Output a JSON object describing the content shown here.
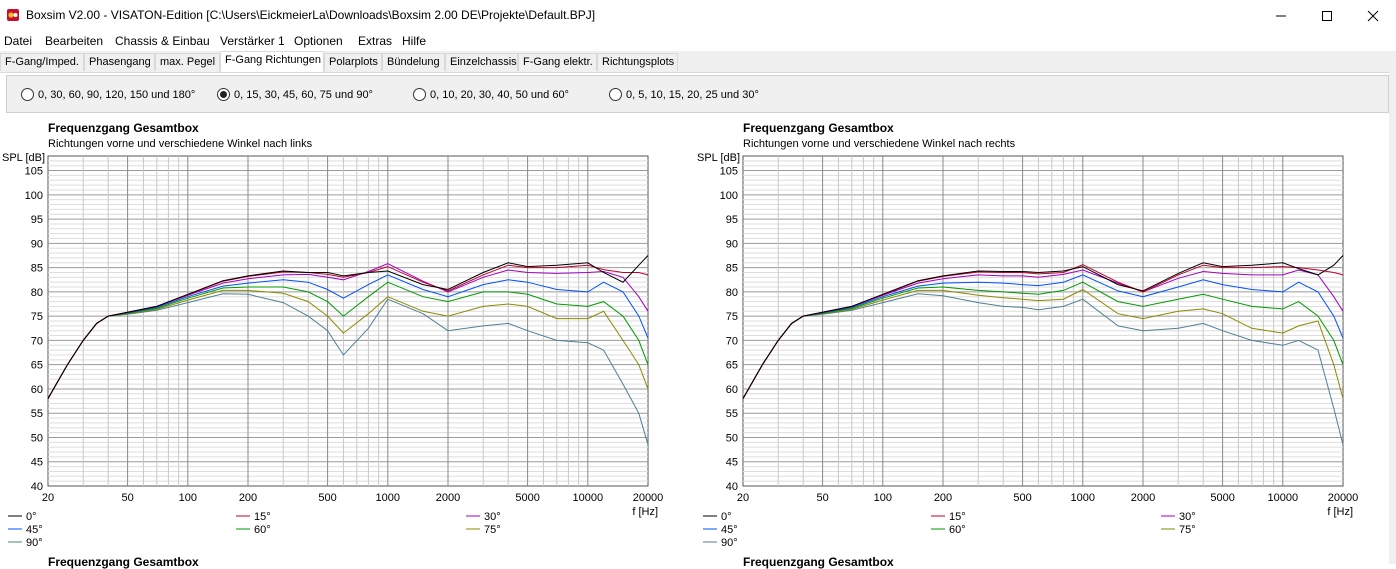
{
  "window": {
    "title": "Boxsim V2.00 - VISATON-Edition [C:\\Users\\EickmeierLa\\Downloads\\Boxsim 2.00 DE\\Projekte\\Default.BPJ]"
  },
  "menu": [
    {
      "label": "Datei"
    },
    {
      "label": "Bearbeiten"
    },
    {
      "label": "Chassis & Einbau"
    },
    {
      "label": "Verstärker 1"
    },
    {
      "label": "Optionen"
    },
    {
      "label": "Extras"
    },
    {
      "label": "Hilfe"
    }
  ],
  "tabs": [
    {
      "label": "F-Gang/Imped."
    },
    {
      "label": "Phasengang"
    },
    {
      "label": "max. Pegel"
    },
    {
      "label": "F-Gang Richtungen",
      "active": true
    },
    {
      "label": "Polarplots"
    },
    {
      "label": "Bündelung"
    },
    {
      "label": "Einzelchassis"
    },
    {
      "label": "F-Gang elektr."
    },
    {
      "label": "Richtungsplots"
    }
  ],
  "angle_options": [
    {
      "label": "0, 30, 60, 90, 120, 150 und 180°",
      "selected": false
    },
    {
      "label": "0, 15, 30, 45, 60, 75 und 90°",
      "selected": true
    },
    {
      "label": "0, 10, 20, 30, 40, 50 und 60°",
      "selected": false
    },
    {
      "label": "0, 5, 10, 15, 20, 25 und 30°",
      "selected": false
    }
  ],
  "colors": {
    "0°": "#000000",
    "15°": "#c0002a",
    "30°": "#a000c0",
    "45°": "#0050ff",
    "60°": "#009a00",
    "75°": "#8a8a00",
    "90°": "#4f7f95"
  },
  "left_chart": {
    "title": "Frequenzgang Gesamtbox",
    "subtitle": "Richtungen vorne und verschiedene Winkel nach links"
  },
  "right_chart": {
    "title": "Frequenzgang Gesamtbox",
    "subtitle": "Richtungen vorne und verschiedene Winkel nach rechts"
  },
  "bottom_titles": [
    "Frequenzgang Gesamtbox",
    "Frequenzgang Gesamtbox"
  ],
  "chart_data": [
    {
      "type": "line",
      "title": "Frequenzgang Gesamtbox",
      "subtitle": "Richtungen vorne und verschiedene Winkel nach links",
      "ylabel": "SPL [dB]",
      "xlabel": "f [Hz]",
      "xscale": "log",
      "xlim": [
        20,
        20000
      ],
      "ylim": [
        40,
        108
      ],
      "xticks": [
        20,
        50,
        100,
        200,
        500,
        1000,
        2000,
        5000,
        10000,
        20000
      ],
      "yticks": [
        40,
        45,
        50,
        55,
        60,
        65,
        70,
        75,
        80,
        85,
        90,
        95,
        100,
        105
      ],
      "grid": true,
      "legend": "bottom",
      "x": [
        20,
        25,
        30,
        35,
        40,
        50,
        70,
        100,
        150,
        200,
        300,
        400,
        500,
        600,
        800,
        1000,
        1500,
        2000,
        3000,
        4000,
        5000,
        7000,
        10000,
        12000,
        15000,
        18000,
        20000
      ],
      "series": [
        {
          "name": "0°",
          "values": [
            58,
            65,
            70,
            73.5,
            75,
            75.8,
            77,
            79.5,
            82.3,
            83.3,
            84.3,
            84,
            84,
            83.3,
            84,
            84.3,
            81.5,
            80.5,
            84,
            86,
            85.2,
            85.5,
            86,
            84,
            82,
            85.5,
            87.5
          ]
        },
        {
          "name": "15°",
          "values": [
            58,
            65,
            70,
            73.5,
            75,
            75.8,
            77,
            79.4,
            82.2,
            83.2,
            84.1,
            84,
            83.6,
            83,
            84,
            85.2,
            82,
            80.2,
            83.5,
            85.5,
            85,
            85,
            85.5,
            84.6,
            84,
            84,
            83.5
          ]
        },
        {
          "name": "30°",
          "values": [
            58,
            65,
            70,
            73.5,
            75,
            75.8,
            77,
            79.3,
            81.8,
            82.7,
            83.5,
            83.6,
            83,
            82.5,
            84.2,
            85.8,
            82.2,
            80,
            83,
            84.5,
            84,
            83.8,
            84,
            84.2,
            83,
            79,
            76
          ]
        },
        {
          "name": "45°",
          "values": [
            58,
            65,
            70,
            73.5,
            75,
            75.7,
            76.8,
            79,
            81.2,
            81.8,
            82.5,
            82,
            80.5,
            78.7,
            81.5,
            83.5,
            80.5,
            79,
            81.5,
            82.5,
            82,
            80.5,
            80,
            82,
            80,
            75,
            70.5
          ]
        },
        {
          "name": "60°",
          "values": [
            58,
            65,
            70,
            73.5,
            75,
            75.6,
            76.6,
            78.7,
            80.8,
            81,
            81,
            80,
            78,
            75,
            79,
            82,
            79,
            78,
            80,
            80,
            79.5,
            77.5,
            77,
            78,
            75,
            70,
            65
          ]
        },
        {
          "name": "75°",
          "values": [
            58,
            65,
            70,
            73.5,
            75,
            75.5,
            76.4,
            78.3,
            80.3,
            80.3,
            79.7,
            78,
            75,
            71.5,
            75.5,
            79,
            76,
            75,
            77,
            77.5,
            77,
            74.5,
            74.5,
            76,
            70,
            65,
            60
          ]
        },
        {
          "name": "90°",
          "values": [
            58,
            65,
            70,
            73.5,
            75,
            75.4,
            76.2,
            77.8,
            79.6,
            79.5,
            77.8,
            75,
            72,
            67,
            72.5,
            78.5,
            75.5,
            72,
            73,
            73.5,
            72,
            70,
            69.5,
            68,
            61,
            55,
            48.5
          ]
        }
      ]
    },
    {
      "type": "line",
      "title": "Frequenzgang Gesamtbox",
      "subtitle": "Richtungen vorne und verschiedene Winkel nach rechts",
      "ylabel": "SPL [dB]",
      "xlabel": "f [Hz]",
      "xscale": "log",
      "xlim": [
        20,
        20000
      ],
      "ylim": [
        40,
        108
      ],
      "xticks": [
        20,
        50,
        100,
        200,
        500,
        1000,
        2000,
        5000,
        10000,
        20000
      ],
      "yticks": [
        40,
        45,
        50,
        55,
        60,
        65,
        70,
        75,
        80,
        85,
        90,
        95,
        100,
        105
      ],
      "grid": true,
      "legend": "bottom",
      "x": [
        20,
        25,
        30,
        35,
        40,
        50,
        70,
        100,
        150,
        200,
        300,
        400,
        500,
        600,
        800,
        1000,
        1500,
        2000,
        3000,
        4000,
        5000,
        7000,
        10000,
        12000,
        15000,
        18000,
        20000
      ],
      "series": [
        {
          "name": "0°",
          "values": [
            58,
            65,
            70,
            73.5,
            75,
            75.8,
            77,
            79.5,
            82.3,
            83.3,
            84.3,
            84.2,
            84.2,
            84,
            84.3,
            85.2,
            81.5,
            80.2,
            83.8,
            86,
            85.2,
            85.5,
            86,
            84.8,
            83.5,
            85.5,
            87.5
          ]
        },
        {
          "name": "15°",
          "values": [
            58,
            65,
            70,
            73.5,
            75,
            75.8,
            77,
            79.4,
            82.2,
            83.2,
            84.1,
            84,
            84,
            83.7,
            84,
            85.6,
            82,
            80,
            83.5,
            85.5,
            85,
            85,
            85.2,
            85,
            84.5,
            84,
            83.5
          ]
        },
        {
          "name": "30°",
          "values": [
            58,
            65,
            70,
            73.5,
            75,
            75.8,
            77,
            79.3,
            81.8,
            82.7,
            83.5,
            83.3,
            83.3,
            83,
            83.6,
            84.5,
            81.8,
            80,
            82.8,
            84.2,
            83.8,
            83.5,
            83.5,
            84.5,
            83.5,
            79,
            76
          ]
        },
        {
          "name": "45°",
          "values": [
            58,
            65,
            70,
            73.5,
            75,
            75.7,
            76.8,
            79,
            81.2,
            81.8,
            82,
            81.8,
            81.5,
            81.3,
            82,
            83.5,
            80.2,
            79,
            81,
            82.5,
            81.5,
            80.5,
            80,
            82,
            80,
            75,
            70.5
          ]
        },
        {
          "name": "60°",
          "values": [
            58,
            65,
            70,
            73.5,
            75,
            75.6,
            76.6,
            78.7,
            80.8,
            81,
            80.3,
            80,
            79.7,
            79.5,
            80.3,
            82,
            78,
            77,
            78.5,
            79.5,
            78.5,
            77,
            76.5,
            78,
            75,
            70,
            65
          ]
        },
        {
          "name": "75°",
          "values": [
            58,
            65,
            70,
            73.5,
            75,
            75.5,
            76.4,
            78.3,
            80.3,
            80.3,
            79.3,
            78.8,
            78.5,
            78.2,
            78.5,
            80.5,
            75.5,
            74.5,
            76,
            76.5,
            75.5,
            72.5,
            71.5,
            73,
            74,
            65,
            58
          ]
        },
        {
          "name": "90°",
          "values": [
            58,
            65,
            70,
            73.5,
            75,
            75.4,
            76.2,
            77.8,
            79.6,
            79.2,
            77.8,
            77,
            76.8,
            76.3,
            77,
            78.5,
            73,
            72,
            72.5,
            73.5,
            72,
            70,
            69,
            70,
            68,
            56,
            48.5
          ]
        }
      ]
    }
  ]
}
